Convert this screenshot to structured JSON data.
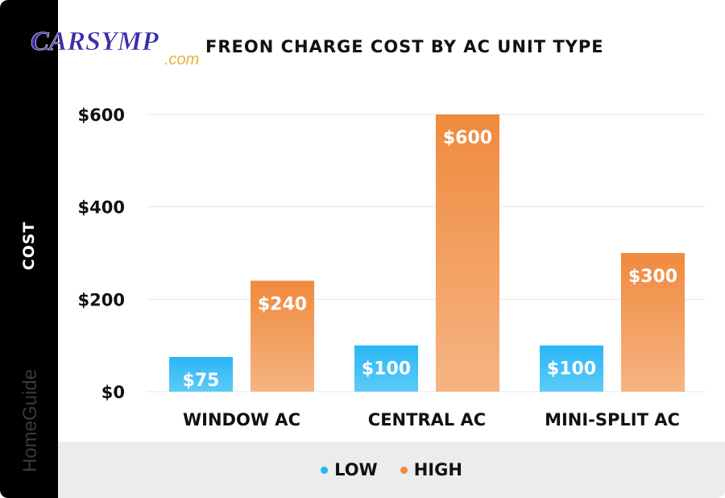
{
  "chart_data": {
    "type": "bar",
    "title": "FREON CHARGE COST BY AC UNIT TYPE",
    "xlabel": "",
    "ylabel": "COST",
    "categories": [
      "WINDOW AC",
      "CENTRAL AC",
      "MINI-SPLIT AC"
    ],
    "series": [
      {
        "name": "LOW",
        "values": [
          75,
          100,
          100
        ],
        "labels": [
          "$75",
          "$100",
          "$100"
        ],
        "color": "#29b6f6"
      },
      {
        "name": "HIGH",
        "values": [
          240,
          600,
          300
        ],
        "labels": [
          "$240",
          "$600",
          "$300"
        ],
        "color": "#f08a3e"
      }
    ],
    "ylim": [
      0,
      600
    ],
    "yticks": [
      0,
      200,
      400,
      600
    ],
    "ytick_labels": [
      "$0",
      "$200",
      "$400",
      "$600"
    ],
    "grid": true,
    "legend": "bottom"
  },
  "watermarks": {
    "logo_main": "CARSYMP",
    "logo_sub": ".com",
    "side": "HomeGuide"
  },
  "colors": {
    "low": "#29b6f6",
    "high": "#f08a3e",
    "left_band": "#000000",
    "bottom_band": "#ececec",
    "logo": "#3b2fa8"
  }
}
